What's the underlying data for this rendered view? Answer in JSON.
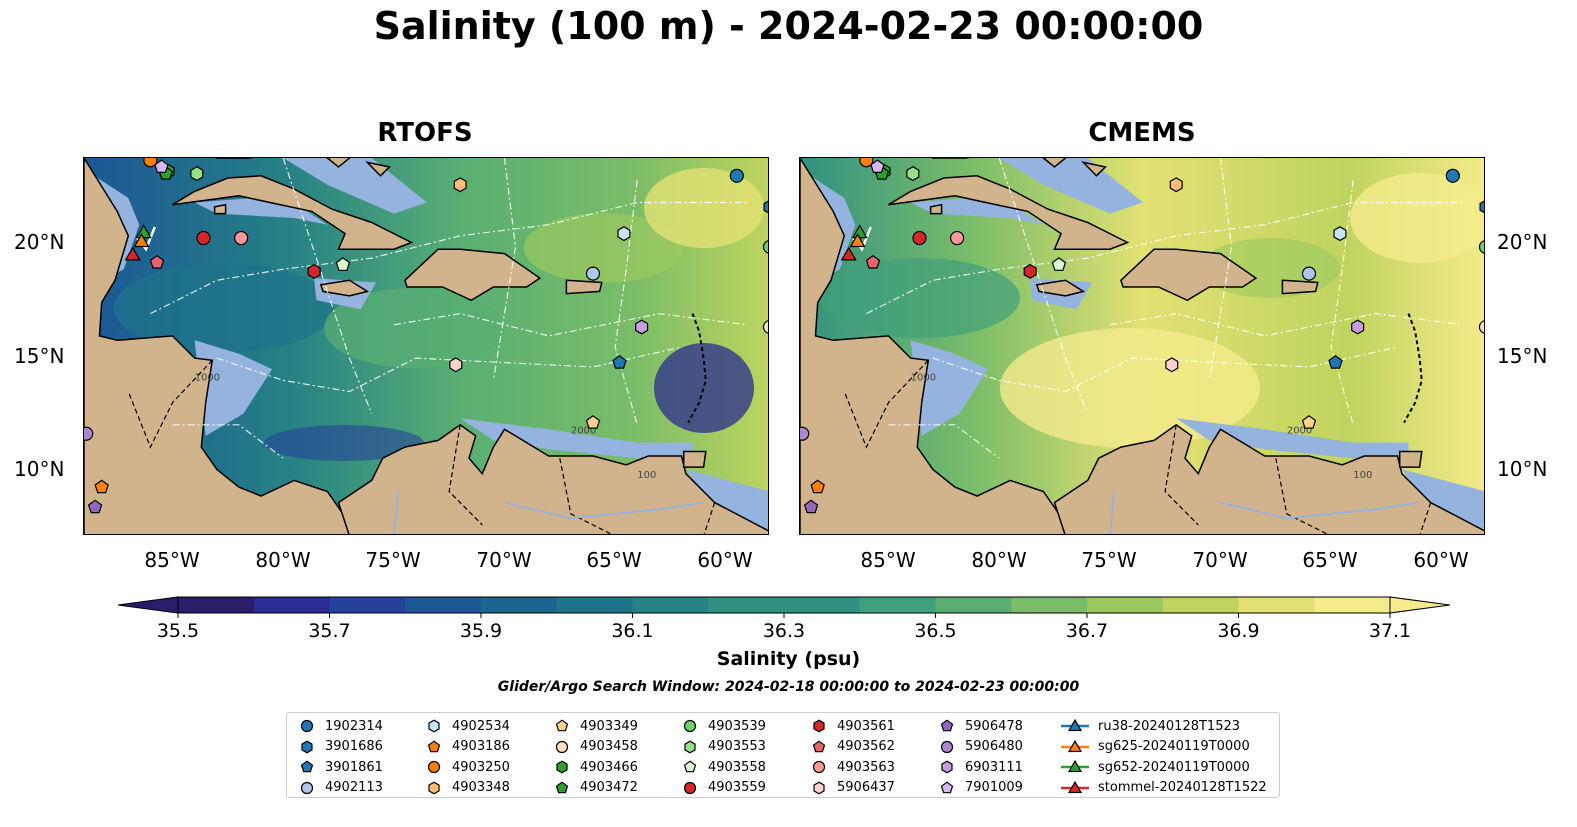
{
  "title": "Salinity (100 m) - 2024-02-23 00:00:00",
  "panels": [
    {
      "id": "rtofs",
      "title": "RTOFS"
    },
    {
      "id": "cmems",
      "title": "CMEMS"
    }
  ],
  "map": {
    "lon_range": [
      -89,
      -58
    ],
    "lat_range": [
      7,
      24
    ],
    "lon_ticks": [
      "85°W",
      "80°W",
      "75°W",
      "70°W",
      "65°W",
      "60°W"
    ],
    "lat_ticks": [
      "20°N",
      "15°N",
      "10°N"
    ],
    "land_color": "#d2b48c",
    "shelf_color": "#95b3df",
    "contour_labels": [
      "1000",
      "100",
      "2000"
    ]
  },
  "colorbar": {
    "label": "Salinity (psu)",
    "min": 35.4,
    "max": 37.2,
    "step": 0.1,
    "extend": "both",
    "ticks": [
      "35.5",
      "35.7",
      "35.9",
      "36.1",
      "36.3",
      "36.5",
      "36.7",
      "36.9",
      "37.1"
    ],
    "colors": [
      "#2b1d6b",
      "#2a2c8f",
      "#24429a",
      "#1b5696",
      "#1a6590",
      "#1e7389",
      "#268285",
      "#309181",
      "#40a07b",
      "#59af72",
      "#79bd68",
      "#9bc960",
      "#bfd45e",
      "#e2e173",
      "#f5eb8c"
    ]
  },
  "search_window": "Glider/Argo Search Window: 2024-02-18 00:00:00 to 2024-02-23 00:00:00",
  "legend": [
    {
      "label": "1902314",
      "marker": "circle",
      "color": "#1f77b4"
    },
    {
      "label": "3901686",
      "marker": "hexagon",
      "color": "#1f77b4"
    },
    {
      "label": "3901861",
      "marker": "pentagon",
      "color": "#1f77b4"
    },
    {
      "label": "4902113",
      "marker": "circle",
      "color": "#aec7e8"
    },
    {
      "label": "4902534",
      "marker": "hexagon",
      "color": "#c6e2f5"
    },
    {
      "label": "4903186",
      "marker": "pentagon",
      "color": "#ff7f0e"
    },
    {
      "label": "4903250",
      "marker": "circle",
      "color": "#ff7f0e"
    },
    {
      "label": "4903348",
      "marker": "hexagon",
      "color": "#ffbb78"
    },
    {
      "label": "4903349",
      "marker": "pentagon",
      "color": "#ffcf90"
    },
    {
      "label": "4903458",
      "marker": "circle",
      "color": "#ffe0c0"
    },
    {
      "label": "4903466",
      "marker": "hexagon",
      "color": "#2ca02c"
    },
    {
      "label": "4903472",
      "marker": "pentagon",
      "color": "#2ca02c"
    },
    {
      "label": "4903539",
      "marker": "circle",
      "color": "#6ccf6c"
    },
    {
      "label": "4903553",
      "marker": "hexagon",
      "color": "#98df8a"
    },
    {
      "label": "4903558",
      "marker": "pentagon",
      "color": "#d8f8d0"
    },
    {
      "label": "4903559",
      "marker": "circle",
      "color": "#d62728"
    },
    {
      "label": "4903561",
      "marker": "hexagon",
      "color": "#d62728"
    },
    {
      "label": "4903562",
      "marker": "pentagon",
      "color": "#e7636a"
    },
    {
      "label": "4903563",
      "marker": "circle",
      "color": "#ff9896"
    },
    {
      "label": "5906437",
      "marker": "hexagon",
      "color": "#ffd0d0"
    },
    {
      "label": "5906478",
      "marker": "pentagon",
      "color": "#9467bd"
    },
    {
      "label": "5906480",
      "marker": "circle",
      "color": "#b085d0"
    },
    {
      "label": "6903111",
      "marker": "hexagon",
      "color": "#c5a0e0"
    },
    {
      "label": "7901009",
      "marker": "pentagon",
      "color": "#d5b8f0"
    },
    {
      "label": "ru38-20240128T1523",
      "marker": "triangle-line",
      "color": "#1f77b4"
    },
    {
      "label": "sg625-20240119T0000",
      "marker": "triangle-line",
      "color": "#ff7f0e"
    },
    {
      "label": "sg652-20240119T0000",
      "marker": "triangle-line",
      "color": "#2ca02c"
    },
    {
      "label": "stommel-20240128T1522",
      "marker": "triangle-line",
      "color": "#d62728"
    }
  ]
}
